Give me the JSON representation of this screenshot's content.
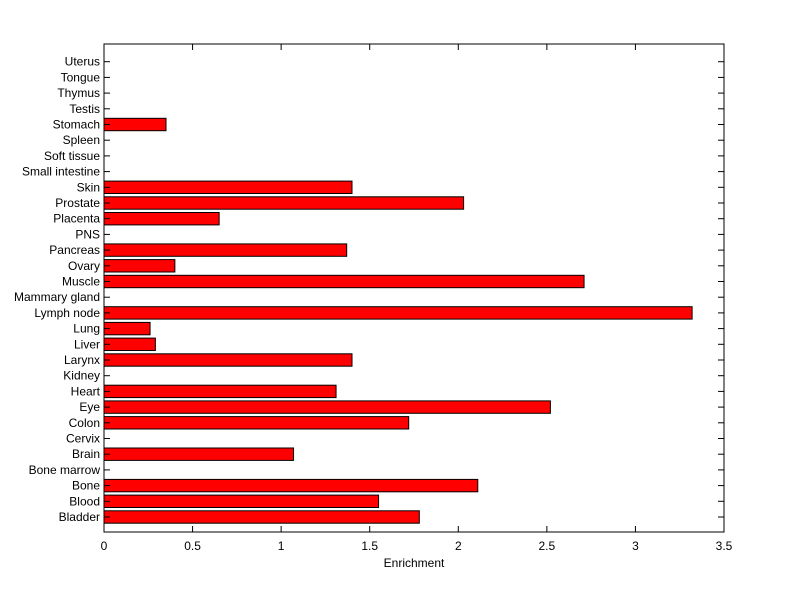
{
  "chart_data": {
    "type": "bar",
    "orientation": "horizontal",
    "categories": [
      "Bladder",
      "Blood",
      "Bone",
      "Bone marrow",
      "Brain",
      "Cervix",
      "Colon",
      "Eye",
      "Heart",
      "Kidney",
      "Larynx",
      "Liver",
      "Lung",
      "Lymph node",
      "Mammary gland",
      "Muscle",
      "Ovary",
      "Pancreas",
      "PNS",
      "Placenta",
      "Prostate",
      "Skin",
      "Small intestine",
      "Soft tissue",
      "Spleen",
      "Stomach",
      "Testis",
      "Thymus",
      "Tongue",
      "Uterus"
    ],
    "values": [
      1.78,
      1.55,
      2.11,
      0,
      1.07,
      0,
      1.72,
      2.52,
      1.31,
      0,
      1.4,
      0.29,
      0.26,
      3.32,
      0,
      2.71,
      0.4,
      1.37,
      0,
      0.65,
      2.03,
      1.4,
      0,
      0,
      0,
      0.35,
      0,
      0,
      0,
      0
    ],
    "bar_color": "#ff0000",
    "xlabel": "Enrichment",
    "ylabel": "",
    "title": "",
    "xlim": [
      0,
      3.5
    ],
    "xticks": [
      "0",
      "0.5",
      "1",
      "1.5",
      "2",
      "2.5",
      "3",
      "3.5"
    ],
    "grid": false,
    "legend": "none"
  }
}
